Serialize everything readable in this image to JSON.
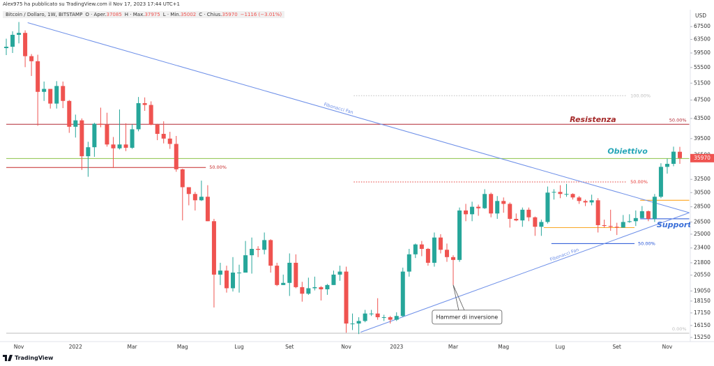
{
  "header": {
    "published": "Alex975 ha pubblicato su TradingView.com il Nov 17, 2023 17:44 UTC+1",
    "brand": "TradingView"
  },
  "chart_data": {
    "type": "candlestick",
    "title": "Bitcoin / Dollaro, 1W, BITSTAMP",
    "ohlc_labels": [
      "O · Aper.",
      "H · Max.",
      "L · Min.",
      "C · Chius."
    ],
    "change": "−1116 (−3.01%)",
    "y_axis_label": "USD",
    "log_scale": true,
    "up_color": "#26a69a",
    "down_color": "#ef5350",
    "ylim": [
      14950,
      72200
    ],
    "yticks": [
      67500,
      63500,
      59500,
      55500,
      51500,
      47500,
      43500,
      39500,
      36500,
      32500,
      30500,
      28500,
      26500,
      25000,
      23400,
      21800,
      20550,
      19050,
      18150,
      17150,
      16150,
      15250
    ],
    "categories": [
      null,
      null,
      "Nov",
      null,
      null,
      null,
      null,
      null,
      null,
      null,
      null,
      "2022",
      null,
      null,
      null,
      null,
      null,
      null,
      null,
      null,
      "Mar",
      null,
      null,
      null,
      null,
      null,
      null,
      null,
      "Mag",
      null,
      null,
      null,
      null,
      null,
      null,
      null,
      null,
      "Lug",
      null,
      null,
      null,
      null,
      null,
      null,
      null,
      "Set",
      null,
      null,
      null,
      null,
      null,
      null,
      null,
      null,
      "Nov",
      null,
      null,
      null,
      null,
      null,
      null,
      null,
      "2023",
      null,
      null,
      null,
      null,
      null,
      null,
      null,
      null,
      "Mar",
      null,
      null,
      null,
      null,
      null,
      null,
      null,
      "Mag",
      null,
      null,
      null,
      null,
      null,
      null,
      null,
      null,
      "Lug",
      null,
      null,
      null,
      null,
      null,
      null,
      null,
      null,
      "Set",
      null,
      null,
      null,
      null,
      null,
      null,
      null,
      "Nov",
      null,
      null
    ],
    "open": [
      60900,
      61300,
      64900,
      65500,
      58600,
      57200,
      49400,
      50100,
      46700,
      50800,
      47300,
      41800,
      43100,
      36300,
      37900,
      42400,
      42200,
      38400,
      37700,
      38400,
      37800,
      41300,
      46800,
      46400,
      42200,
      40400,
      39500,
      38500,
      34100,
      31300,
      30300,
      29400,
      29900,
      26600,
      20600,
      21000,
      19300,
      20800,
      20800,
      22600,
      23300,
      23200,
      24300,
      21500,
      19600,
      19800,
      21800,
      19400,
      18800,
      19300,
      19400,
      19200,
      19600,
      20600,
      20900,
      16300,
      16300,
      16500,
      17100,
      17100,
      16800,
      16800,
      16600,
      16900,
      20900,
      22700,
      23800,
      23300,
      21800,
      24600,
      23200,
      22400,
      22100,
      28000,
      27500,
      28500,
      28300,
      30300,
      27600,
      29300,
      28900,
      26900,
      26700,
      28100,
      27100,
      25900,
      26500,
      30500,
      30600,
      30300,
      30300,
      29800,
      29300,
      29100,
      29400,
      26100,
      26000,
      25900,
      25800,
      26500,
      26600,
      27000,
      27900,
      26900,
      29900,
      34500,
      35000,
      37085
    ],
    "high": [
      63700,
      66000,
      69000,
      66300,
      59200,
      59000,
      51900,
      50100,
      52000,
      51900,
      47500,
      44300,
      43500,
      38900,
      42600,
      45800,
      44700,
      39800,
      45400,
      42500,
      42300,
      48200,
      48100,
      47200,
      42400,
      42900,
      40800,
      40000,
      34200,
      31300,
      30600,
      32300,
      31600,
      26900,
      21800,
      21500,
      22400,
      21600,
      24200,
      24600,
      23600,
      25200,
      24400,
      21800,
      20600,
      22800,
      22700,
      19900,
      20300,
      20400,
      19500,
      19700,
      21000,
      21500,
      21400,
      17100,
      16800,
      17400,
      17400,
      18400,
      17000,
      16900,
      17200,
      21300,
      23300,
      23900,
      24200,
      23400,
      25200,
      25000,
      23900,
      22600,
      28400,
      28900,
      29200,
      28800,
      31000,
      30500,
      30000,
      29800,
      29100,
      27600,
      28400,
      28400,
      27200,
      26800,
      31400,
      31000,
      31600,
      31800,
      30400,
      30000,
      29500,
      30200,
      29700,
      26800,
      28100,
      26400,
      27400,
      27500,
      28000,
      28600,
      28000,
      30300,
      35100,
      35900,
      38000,
      37975
    ],
    "low": [
      58900,
      59500,
      62300,
      55600,
      53300,
      42000,
      47300,
      45600,
      45600,
      45700,
      40600,
      39700,
      34000,
      32900,
      36200,
      41700,
      38000,
      34300,
      37500,
      37200,
      37600,
      40900,
      45100,
      42100,
      39200,
      38600,
      37600,
      33700,
      26700,
      28700,
      28000,
      29300,
      26600,
      17600,
      19600,
      18900,
      19000,
      18900,
      20800,
      20700,
      22400,
      22700,
      20800,
      19500,
      19600,
      18600,
      19300,
      18100,
      18700,
      19100,
      18200,
      18700,
      19600,
      20000,
      15600,
      15800,
      15500,
      16400,
      16900,
      16600,
      16500,
      16300,
      16500,
      16800,
      20400,
      22300,
      22500,
      21500,
      21400,
      22800,
      21900,
      19600,
      21900,
      26600,
      26600,
      27300,
      28200,
      27100,
      26900,
      27700,
      25800,
      26600,
      25900,
      26600,
      24800,
      24800,
      26300,
      29500,
      29700,
      29900,
      29500,
      28900,
      28600,
      28700,
      25200,
      25800,
      25400,
      24900,
      25800,
      26400,
      26000,
      27000,
      26600,
      26500,
      29700,
      33400,
      34600,
      35002
    ],
    "close": [
      61300,
      64900,
      65500,
      58600,
      57200,
      49400,
      50100,
      46700,
      50800,
      47300,
      41800,
      43100,
      36300,
      37900,
      42400,
      42200,
      38400,
      37700,
      38400,
      37800,
      41300,
      46800,
      46400,
      42200,
      40400,
      39500,
      38500,
      34100,
      31300,
      30300,
      29400,
      29900,
      26600,
      20600,
      21000,
      19300,
      20800,
      20800,
      22600,
      23300,
      23200,
      24300,
      21500,
      19600,
      19800,
      21800,
      19400,
      18800,
      19300,
      19400,
      19200,
      19600,
      20600,
      20900,
      16300,
      16300,
      16500,
      17100,
      17100,
      16800,
      16800,
      16600,
      16900,
      20900,
      22700,
      23800,
      23300,
      21800,
      24600,
      23200,
      22400,
      22100,
      28000,
      27500,
      28500,
      28300,
      30300,
      27600,
      29300,
      28900,
      26900,
      26700,
      28100,
      27100,
      25900,
      26500,
      30500,
      30600,
      30300,
      30300,
      29800,
      29300,
      29100,
      29400,
      26100,
      26000,
      25900,
      25800,
      26500,
      26600,
      27000,
      27900,
      26900,
      29900,
      34500,
      35000,
      37100,
      35970
    ],
    "levels": [
      {
        "price": 42300,
        "from": 0,
        "to": 108.5,
        "color": "#b22833",
        "label": "50.00%"
      },
      {
        "price": 35900,
        "from": 0,
        "to": 108.5,
        "color": "#8bc34a"
      },
      {
        "price": 34400,
        "from": 0,
        "to": 31.7,
        "color": "#c62828",
        "label": "50.00%"
      },
      {
        "price": 48500,
        "from": 55.2,
        "to": 98.6,
        "color": "#bdbdbd",
        "dash": true,
        "label": "100.00%"
      },
      {
        "price": 32100,
        "from": 55.2,
        "to": 98.6,
        "color": "#e53935",
        "dash": true,
        "label": "50.00%"
      },
      {
        "price": 23900,
        "from": 86.6,
        "to": 99.8,
        "color": "#1e4fd6",
        "label": "50.00%"
      },
      {
        "price": 25800,
        "from": 85.4,
        "to": 99.8,
        "color": "#f9a825"
      },
      {
        "price": 29400,
        "from": 100.7,
        "to": 108.5,
        "color": "#ff9800"
      },
      {
        "price": 26900,
        "from": 100.7,
        "to": 108.5,
        "color": "#1e4fd6"
      },
      {
        "price": 15560,
        "from": 0,
        "to": 108.5,
        "color": "#bdbdbd",
        "label": "0.00%"
      }
    ],
    "trend_lines": [
      {
        "label": "Fibonacci Fan",
        "color": "#6d8fe8",
        "points": [
          [
            3.4,
            68800
          ],
          [
            108.5,
            27700
          ]
        ]
      },
      {
        "label": "Fibonacci Fan",
        "color": "#6d8fe8",
        "points": [
          [
            56.3,
            15640
          ],
          [
            108.5,
            27700
          ]
        ]
      }
    ],
    "annotations": [
      {
        "text": "Resistenza",
        "index": 93.2,
        "price": 43200,
        "color": "#a52a2a"
      },
      {
        "text": "Obiettivo",
        "index": 98.7,
        "price": 37100,
        "color": "#26a6b7"
      },
      {
        "text": "Supporto",
        "index": 106.5,
        "price": 26100,
        "color": "#3a6fd8"
      }
    ],
    "callout": {
      "text": "Hammer di inversione",
      "index": 73.2,
      "price": 16810,
      "target": 71
    }
  }
}
